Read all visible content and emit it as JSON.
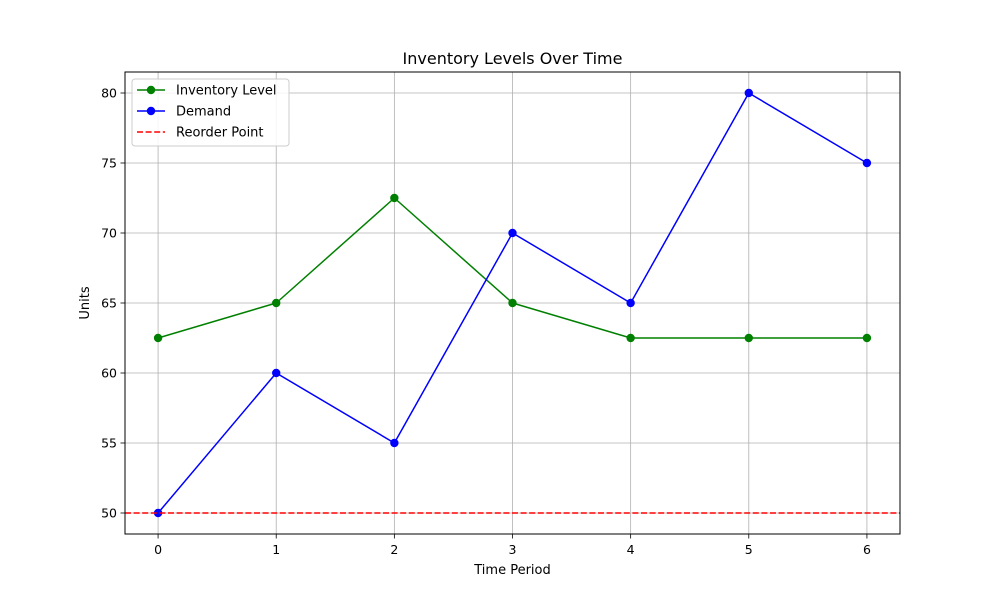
{
  "chart_data": {
    "type": "line",
    "title": "Inventory Levels Over Time",
    "xlabel": "Time Period",
    "ylabel": "Units",
    "x": [
      0,
      1,
      2,
      3,
      4,
      5,
      6
    ],
    "xlim": [
      -0.28,
      6.28
    ],
    "ylim": [
      48.5,
      81.5
    ],
    "xticks": [
      0,
      1,
      2,
      3,
      4,
      5,
      6
    ],
    "yticks": [
      50,
      55,
      60,
      65,
      70,
      75,
      80
    ],
    "grid": true,
    "legend_position": "top-left",
    "series": [
      {
        "name": "Inventory Level",
        "values": [
          62.5,
          65,
          72.5,
          65,
          62.5,
          62.5,
          62.5
        ],
        "color": "#008000",
        "style": "solid",
        "marker": "circle"
      },
      {
        "name": "Demand",
        "values": [
          50,
          60,
          55,
          70,
          65,
          80,
          75
        ],
        "color": "#0000ff",
        "style": "solid",
        "marker": "circle"
      }
    ],
    "reference_lines": [
      {
        "name": "Reorder Point",
        "y": 50,
        "color": "#ff0000",
        "style": "dashed"
      }
    ]
  }
}
